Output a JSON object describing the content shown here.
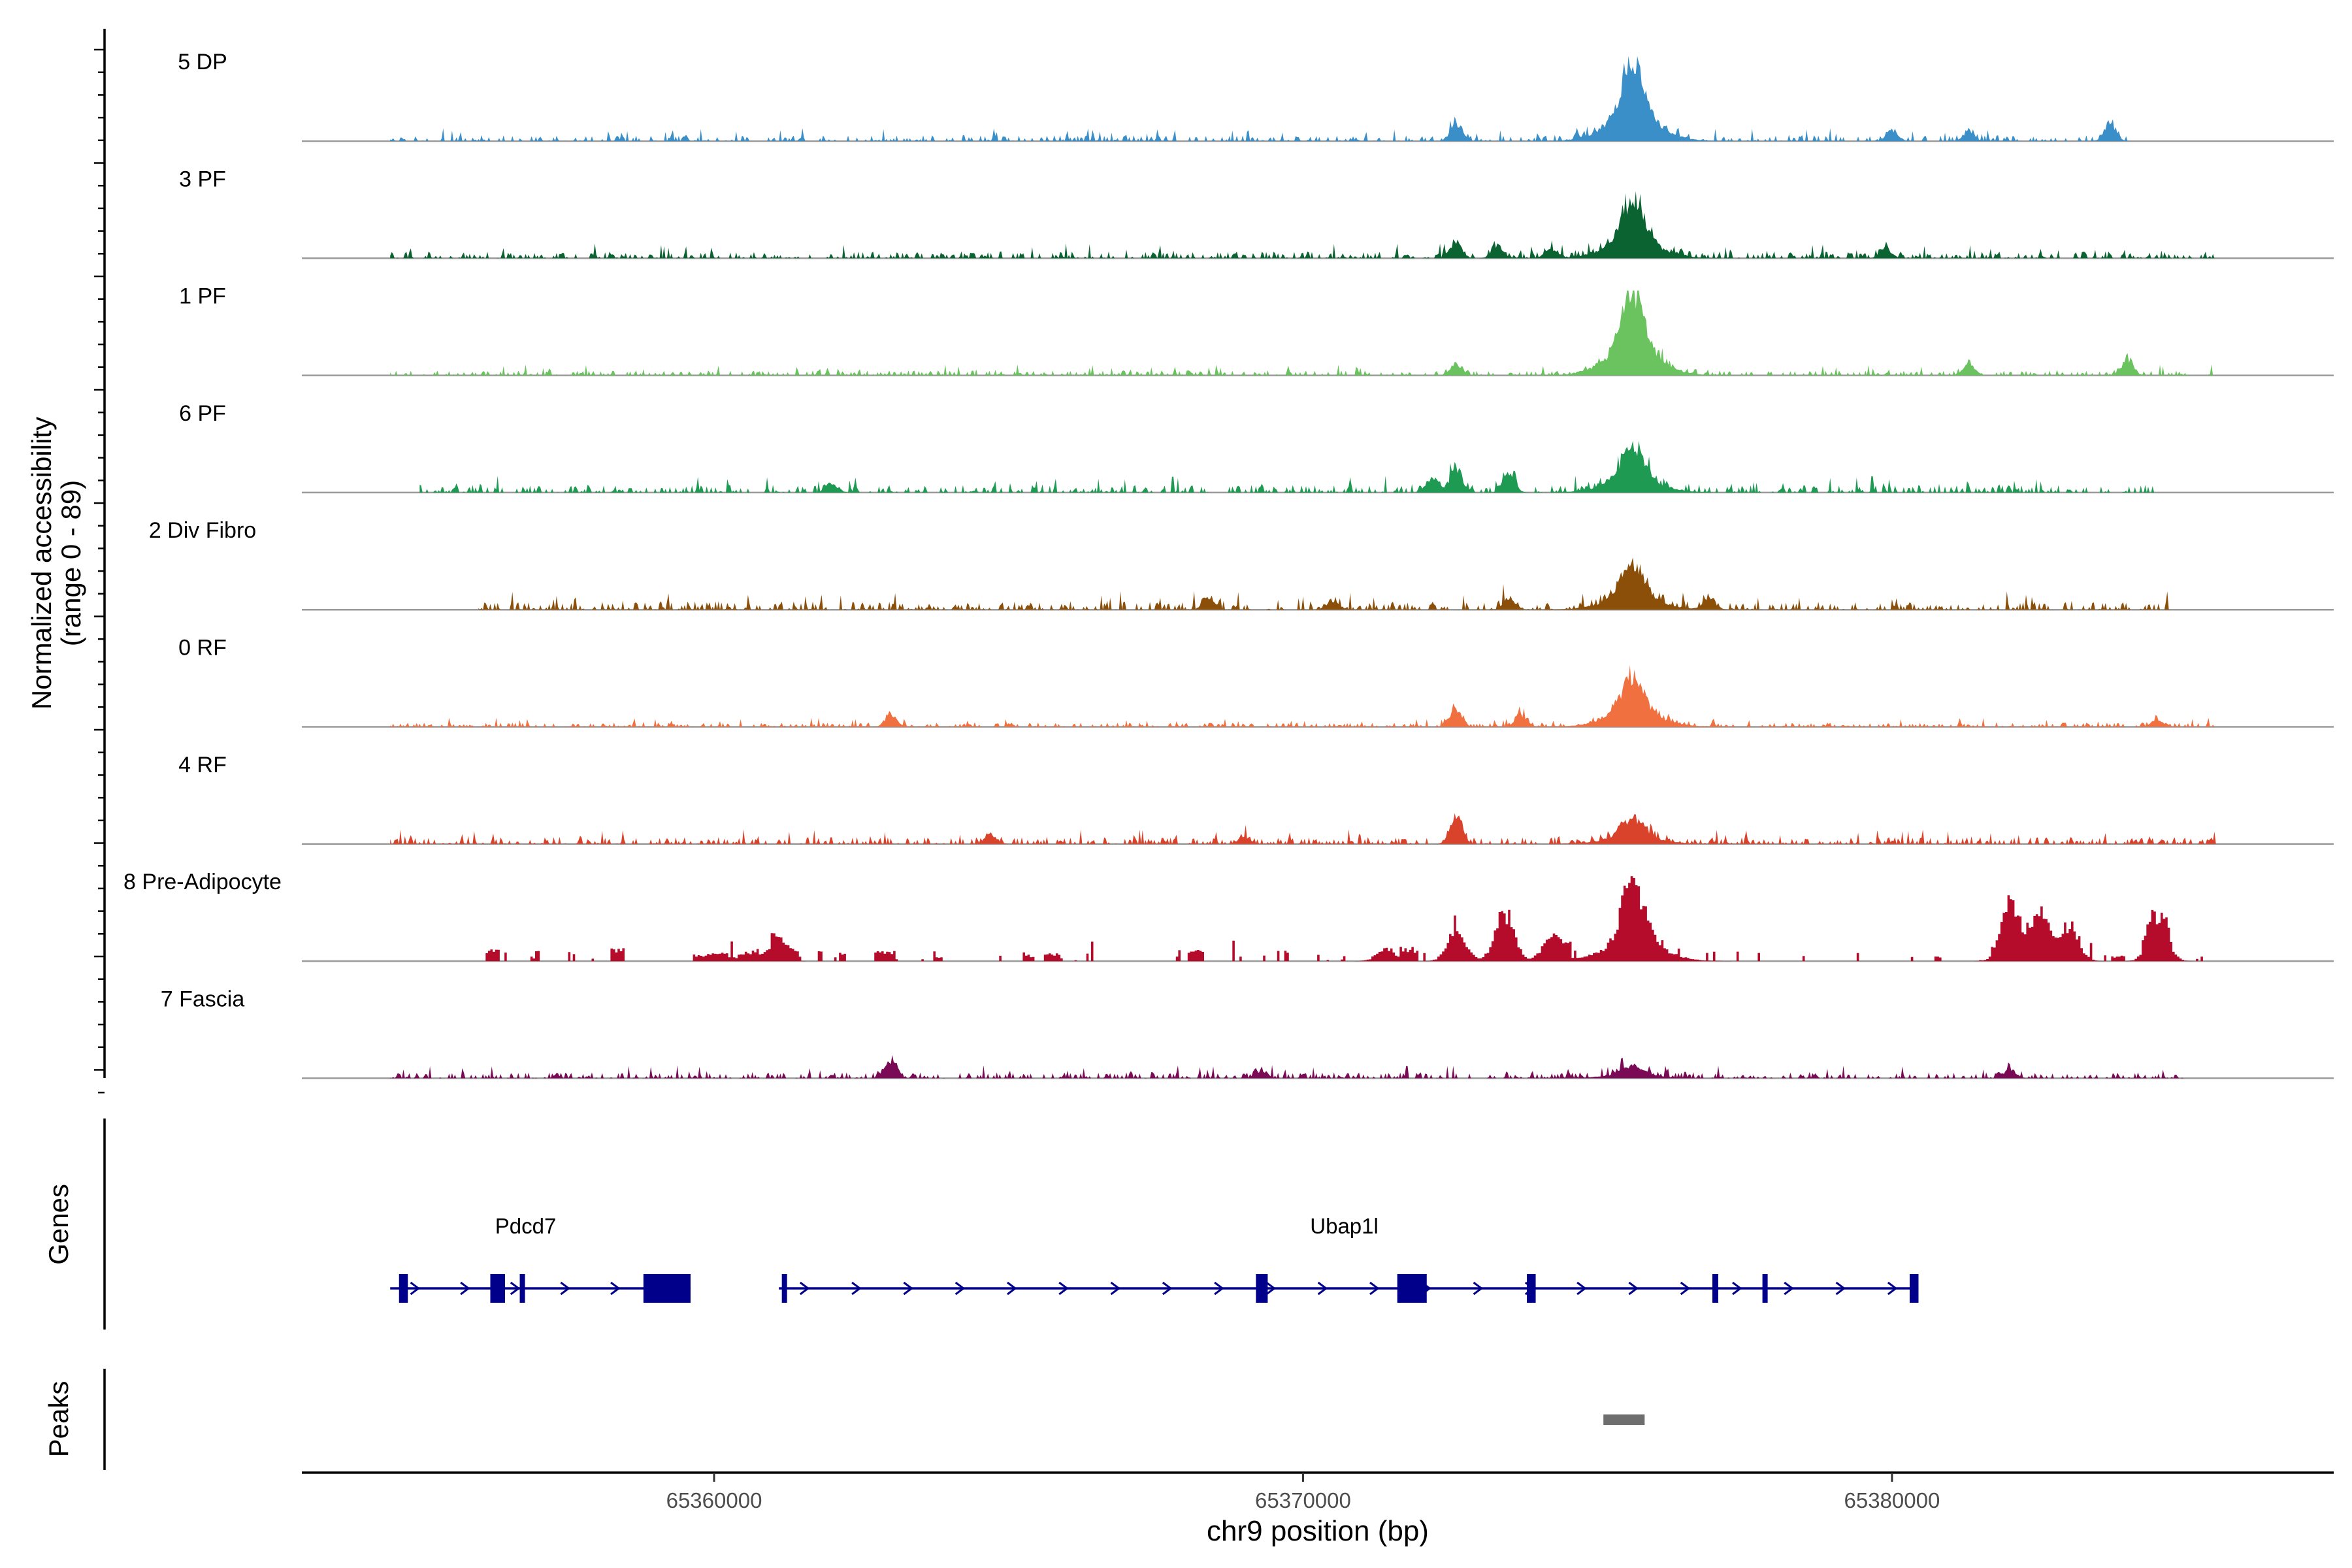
{
  "chart_data": {
    "type": "area",
    "title": "",
    "ylabel": "Normalized accessibility",
    "ylabel_range": "(range 0 - 89)",
    "xlabel": "chr9 position (bp)",
    "x_range": [
      65353000,
      65387500
    ],
    "y_range": [
      0,
      89
    ],
    "x_ticks": [
      65360000,
      65370000,
      65380000
    ],
    "x_tick_labels": [
      "65360000",
      "65370000",
      "65380000"
    ],
    "main_peak": {
      "center": 65375600,
      "start": 65375200,
      "end": 65376000
    },
    "tracks": [
      {
        "name": "5 DP",
        "color": "#3a8fc8",
        "peak_height": 0.95,
        "noise": 0.07,
        "seed": 11,
        "start": 65354500,
        "end": 65384000,
        "extra_peaks": [
          {
            "x": 65372600,
            "h": 0.22
          },
          {
            "x": 65380000,
            "h": 0.15
          },
          {
            "x": 65383700,
            "h": 0.2
          },
          {
            "x": 65381300,
            "h": 0.12
          }
        ]
      },
      {
        "name": "3 PF",
        "color": "#0b6332",
        "peak_height": 0.72,
        "noise": 0.08,
        "seed": 23,
        "start": 65354500,
        "end": 65385500,
        "extra_peaks": [
          {
            "x": 65372600,
            "h": 0.2
          },
          {
            "x": 65373300,
            "h": 0.15
          },
          {
            "x": 65374200,
            "h": 0.12
          },
          {
            "x": 65379900,
            "h": 0.12
          }
        ]
      },
      {
        "name": "1 PF",
        "color": "#6ac35f",
        "peak_height": 1.0,
        "noise": 0.06,
        "seed": 37,
        "start": 65354500,
        "end": 65385500,
        "extra_peaks": [
          {
            "x": 65372600,
            "h": 0.12
          },
          {
            "x": 65381300,
            "h": 0.15
          },
          {
            "x": 65384000,
            "h": 0.2
          }
        ]
      },
      {
        "name": "6 PF",
        "color": "#1e9a52",
        "peak_height": 0.55,
        "noise": 0.09,
        "seed": 41,
        "start": 65355000,
        "end": 65384500,
        "extra_peaks": [
          {
            "x": 65372600,
            "h": 0.3
          },
          {
            "x": 65373500,
            "h": 0.25
          },
          {
            "x": 65372200,
            "h": 0.2
          },
          {
            "x": 65362000,
            "h": 0.12
          }
        ]
      },
      {
        "name": "2 Div Fibro",
        "color": "#8b4f0a",
        "peak_height": 0.55,
        "noise": 0.1,
        "seed": 53,
        "start": 65356000,
        "end": 65385000,
        "extra_peaks": [
          {
            "x": 65368400,
            "h": 0.15
          },
          {
            "x": 65370500,
            "h": 0.12
          },
          {
            "x": 65373500,
            "h": 0.15
          },
          {
            "x": 65376900,
            "h": 0.15
          }
        ]
      },
      {
        "name": "0 RF",
        "color": "#f07040",
        "peak_height": 0.6,
        "noise": 0.05,
        "seed": 67,
        "start": 65354500,
        "end": 65385500,
        "extra_peaks": [
          {
            "x": 65363000,
            "h": 0.15
          },
          {
            "x": 65372600,
            "h": 0.2
          },
          {
            "x": 65373700,
            "h": 0.15
          },
          {
            "x": 65384500,
            "h": 0.1
          }
        ]
      },
      {
        "name": "4 RF",
        "color": "#d9432b",
        "peak_height": 0.3,
        "noise": 0.08,
        "seed": 71,
        "start": 65354500,
        "end": 65385500,
        "extra_peaks": [
          {
            "x": 65372600,
            "h": 0.35
          },
          {
            "x": 65364700,
            "h": 0.12
          },
          {
            "x": 65369000,
            "h": 0.1
          }
        ]
      },
      {
        "name": "8 Pre-Adipocyte",
        "color": "#b50c2c",
        "peak_height": 0.9,
        "noise": 0.12,
        "seed": 83,
        "start": 65356000,
        "end": 65385500,
        "blocky": true,
        "extra_peaks": [
          {
            "x": 65382000,
            "h": 0.82
          },
          {
            "x": 65382500,
            "h": 0.55
          },
          {
            "x": 65383000,
            "h": 0.4
          },
          {
            "x": 65384500,
            "h": 0.55
          },
          {
            "x": 65373400,
            "h": 0.62
          },
          {
            "x": 65372600,
            "h": 0.4
          },
          {
            "x": 65374200,
            "h": 0.3
          },
          {
            "x": 65361000,
            "h": 0.2
          },
          {
            "x": 65371400,
            "h": 0.15
          }
        ]
      },
      {
        "name": "7 Fascia",
        "color": "#7a0a56",
        "peak_height": 0.15,
        "noise": 0.07,
        "seed": 97,
        "start": 65354500,
        "end": 65385000,
        "extra_peaks": [
          {
            "x": 65363000,
            "h": 0.22
          },
          {
            "x": 65369300,
            "h": 0.1
          },
          {
            "x": 65382000,
            "h": 0.12
          }
        ]
      }
    ],
    "genes": [
      {
        "name": "Pdcd7",
        "start": 65354500,
        "end": 65359600,
        "label_x": 65356800,
        "exons": [
          [
            65354650,
            65354800,
            "s"
          ],
          [
            65356200,
            65356450,
            "b"
          ],
          [
            65356700,
            65356760,
            "s"
          ],
          [
            65358800,
            65359600,
            "b"
          ]
        ]
      },
      {
        "name": "Ubap1l",
        "start": 65361100,
        "end": 65380450,
        "label_x": 65370700,
        "exons": [
          [
            65361150,
            65361180,
            "s"
          ],
          [
            65369200,
            65369400,
            "b"
          ],
          [
            65371600,
            65372100,
            "b"
          ],
          [
            65373800,
            65373950,
            "b"
          ],
          [
            65376950,
            65377050,
            "s"
          ],
          [
            65377800,
            65377880,
            "s"
          ],
          [
            65380300,
            65380450,
            "s"
          ]
        ]
      }
    ],
    "peaks": [
      {
        "start": 65375100,
        "end": 65375800
      }
    ],
    "panel_labels": {
      "genes": "Genes",
      "peaks": "Peaks"
    },
    "colors": {
      "gene": "#00008b",
      "baseline": "#9a9a9a",
      "peak_bar": "#6e6e6e"
    }
  }
}
